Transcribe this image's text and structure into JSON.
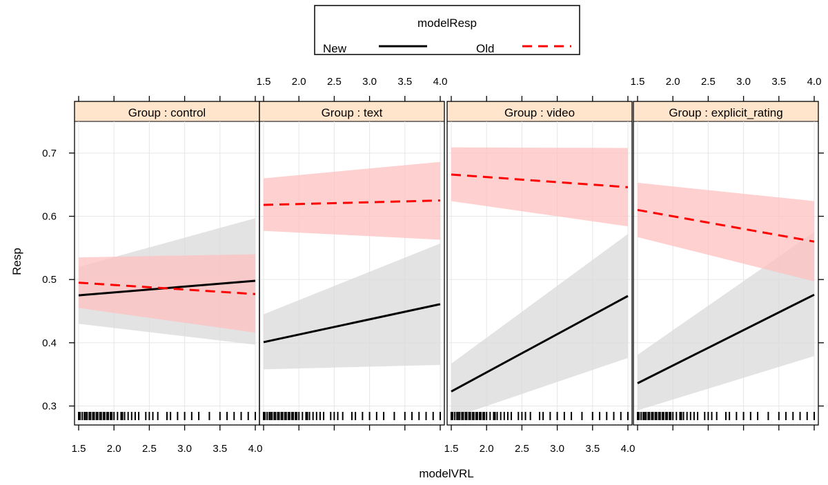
{
  "chart_data": {
    "type": "line",
    "xlabel": "modelVRL",
    "ylabel": "Resp",
    "xlim": [
      1.5,
      4.0
    ],
    "ylim": [
      0.27,
      0.75
    ],
    "x_ticks": [
      "1.5",
      "2.0",
      "2.5",
      "3.0",
      "3.5",
      "4.0"
    ],
    "y_ticks": [
      "0.3",
      "0.4",
      "0.5",
      "0.6",
      "0.7"
    ],
    "legend": {
      "title": "modelResp",
      "position": "top",
      "entries": [
        {
          "label": "New",
          "color": "#000000",
          "style": "solid"
        },
        {
          "label": "Old",
          "color": "#ff0000",
          "style": "dashed"
        }
      ]
    },
    "grid": true,
    "rug": [
      1.5,
      1.52,
      1.55,
      1.58,
      1.6,
      1.62,
      1.65,
      1.67,
      1.7,
      1.72,
      1.75,
      1.77,
      1.8,
      1.82,
      1.85,
      1.87,
      1.9,
      1.92,
      1.95,
      1.97,
      2.0,
      2.05,
      2.1,
      2.12,
      2.15,
      2.2,
      2.25,
      2.3,
      2.35,
      2.45,
      2.5,
      2.55,
      2.62,
      2.75,
      2.8,
      2.9,
      3.0,
      3.1,
      3.2,
      3.35,
      3.5,
      3.6,
      3.7,
      3.8,
      3.9,
      4.0
    ],
    "panels": [
      {
        "strip": "Group : control",
        "series": [
          {
            "name": "New",
            "x": [
              1.5,
              4.0
            ],
            "y": [
              0.475,
              0.498
            ],
            "lower": [
              0.43,
              0.397
            ],
            "upper": [
              0.52,
              0.597
            ]
          },
          {
            "name": "Old",
            "x": [
              1.5,
              4.0
            ],
            "y": [
              0.495,
              0.477
            ],
            "lower": [
              0.455,
              0.416
            ],
            "upper": [
              0.535,
              0.54
            ]
          }
        ]
      },
      {
        "strip": "Group : text",
        "series": [
          {
            "name": "New",
            "x": [
              1.5,
              4.0
            ],
            "y": [
              0.401,
              0.461
            ],
            "lower": [
              0.358,
              0.365
            ],
            "upper": [
              0.445,
              0.557
            ]
          },
          {
            "name": "Old",
            "x": [
              1.5,
              4.0
            ],
            "y": [
              0.618,
              0.625
            ],
            "lower": [
              0.577,
              0.563
            ],
            "upper": [
              0.66,
              0.686
            ]
          }
        ]
      },
      {
        "strip": "Group : video",
        "series": [
          {
            "name": "New",
            "x": [
              1.5,
              4.0
            ],
            "y": [
              0.323,
              0.474
            ],
            "lower": [
              0.281,
              0.376
            ],
            "upper": [
              0.367,
              0.572
            ]
          },
          {
            "name": "Old",
            "x": [
              1.5,
              4.0
            ],
            "y": [
              0.666,
              0.646
            ],
            "lower": [
              0.624,
              0.584
            ],
            "upper": [
              0.709,
              0.708
            ]
          }
        ]
      },
      {
        "strip": "Group : explicit_rating",
        "series": [
          {
            "name": "New",
            "x": [
              1.5,
              4.0
            ],
            "y": [
              0.336,
              0.476
            ],
            "lower": [
              0.293,
              0.379
            ],
            "upper": [
              0.381,
              0.575
            ]
          },
          {
            "name": "Old",
            "x": [
              1.5,
              4.0
            ],
            "y": [
              0.61,
              0.56
            ],
            "lower": [
              0.567,
              0.497
            ],
            "upper": [
              0.653,
              0.624
            ]
          }
        ]
      }
    ]
  },
  "colors": {
    "strip_bg": "#ffe5cc",
    "new_line": "#000000",
    "new_band": "#d9d9d9",
    "old_line": "#ff0000",
    "old_band": "#ffc0c0",
    "grid": "#e6e6e6"
  }
}
